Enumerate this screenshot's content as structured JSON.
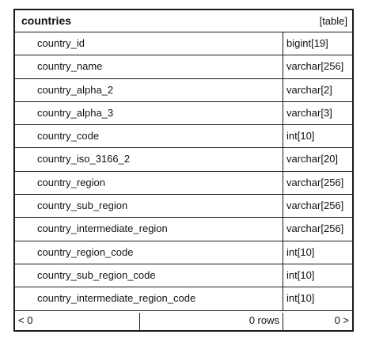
{
  "table": {
    "name": "countries",
    "kind": "[table]",
    "columns": [
      {
        "name": "country_id",
        "type": "bigint[19]"
      },
      {
        "name": "country_name",
        "type": "varchar[256]"
      },
      {
        "name": "country_alpha_2",
        "type": "varchar[2]"
      },
      {
        "name": "country_alpha_3",
        "type": "varchar[3]"
      },
      {
        "name": "country_code",
        "type": "int[10]"
      },
      {
        "name": "country_iso_3166_2",
        "type": "varchar[20]"
      },
      {
        "name": "country_region",
        "type": "varchar[256]"
      },
      {
        "name": "country_sub_region",
        "type": "varchar[256]"
      },
      {
        "name": "country_intermediate_region",
        "type": "varchar[256]"
      },
      {
        "name": "country_region_code",
        "type": "int[10]"
      },
      {
        "name": "country_sub_region_code",
        "type": "int[10]"
      },
      {
        "name": "country_intermediate_region_code",
        "type": "int[10]"
      }
    ],
    "footer": {
      "prev": "< 0",
      "rows": "0 rows",
      "next": "0 >"
    }
  }
}
